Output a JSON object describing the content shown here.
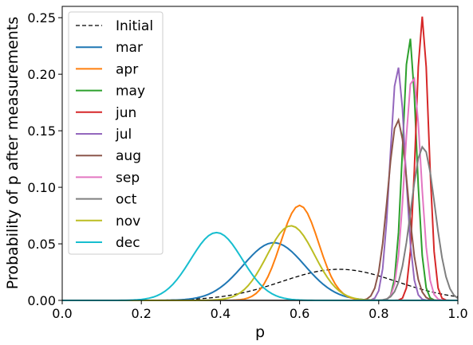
{
  "chart_data": {
    "type": "line",
    "xlabel": "p",
    "ylabel": "Probability of p after measurements",
    "xlim": [
      0.0,
      1.0
    ],
    "ylim": [
      0.0,
      0.26
    ],
    "xticks": [
      "0.0",
      "0.2",
      "0.4",
      "0.6",
      "0.8",
      "1.0"
    ],
    "yticks": [
      "0.00",
      "0.05",
      "0.10",
      "0.15",
      "0.20",
      "0.25"
    ],
    "legend_position": "upper-left",
    "grid": false,
    "series": [
      {
        "name": "Initial",
        "color": "#000000",
        "dashed": true,
        "mu": 0.7,
        "sigma": 0.145,
        "peak": 0.0275
      },
      {
        "name": "mar",
        "color": "#1f77b4",
        "mu": 0.535,
        "sigma": 0.078,
        "peak": 0.051
      },
      {
        "name": "apr",
        "color": "#ff7f0e",
        "mu": 0.6,
        "sigma": 0.048,
        "peak": 0.084
      },
      {
        "name": "may",
        "color": "#2ca02c",
        "mu": 0.878,
        "sigma": 0.017,
        "peak": 0.233
      },
      {
        "name": "jun",
        "color": "#d62728",
        "mu": 0.91,
        "sigma": 0.016,
        "peak": 0.251
      },
      {
        "name": "jul",
        "color": "#9467bd",
        "mu": 0.848,
        "sigma": 0.019,
        "peak": 0.207
      },
      {
        "name": "aug",
        "color": "#8c564b",
        "mu": 0.848,
        "sigma": 0.025,
        "peak": 0.16
      },
      {
        "name": "sep",
        "color": "#e377c2",
        "mu": 0.886,
        "sigma": 0.02,
        "peak": 0.2
      },
      {
        "name": "oct",
        "color": "#7f7f7f",
        "mu": 0.912,
        "sigma": 0.03,
        "peak": 0.136
      },
      {
        "name": "nov",
        "color": "#bcbd22",
        "mu": 0.578,
        "sigma": 0.06,
        "peak": 0.066
      },
      {
        "name": "dec",
        "color": "#17becf",
        "mu": 0.39,
        "sigma": 0.065,
        "peak": 0.06
      }
    ]
  }
}
